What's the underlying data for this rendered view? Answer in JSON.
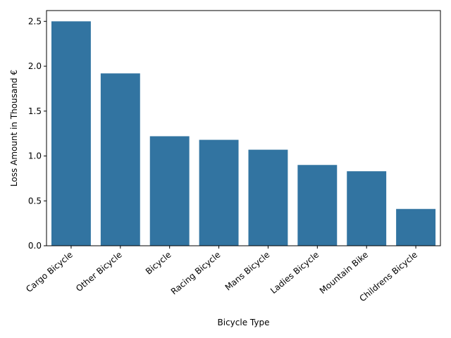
{
  "chart_data": {
    "type": "bar",
    "title": "",
    "xlabel": "Bicycle Type",
    "ylabel": "Loss Amount in Thousand €",
    "categories": [
      "Cargo Bicycle",
      "Other Bicycle",
      "Bicycle",
      "Racing Bicycle",
      "Mans Bicycle",
      "Ladies Bicycle",
      "Mountain Bike",
      "Childrens Bicycle"
    ],
    "values": [
      2.5,
      1.92,
      1.22,
      1.18,
      1.07,
      0.9,
      0.83,
      0.41
    ],
    "ylim": [
      0,
      2.62
    ],
    "yticks": [
      "0.0",
      "0.5",
      "1.0",
      "1.5",
      "2.0",
      "2.5"
    ],
    "grid": false,
    "bar_color": "#3274a1"
  }
}
